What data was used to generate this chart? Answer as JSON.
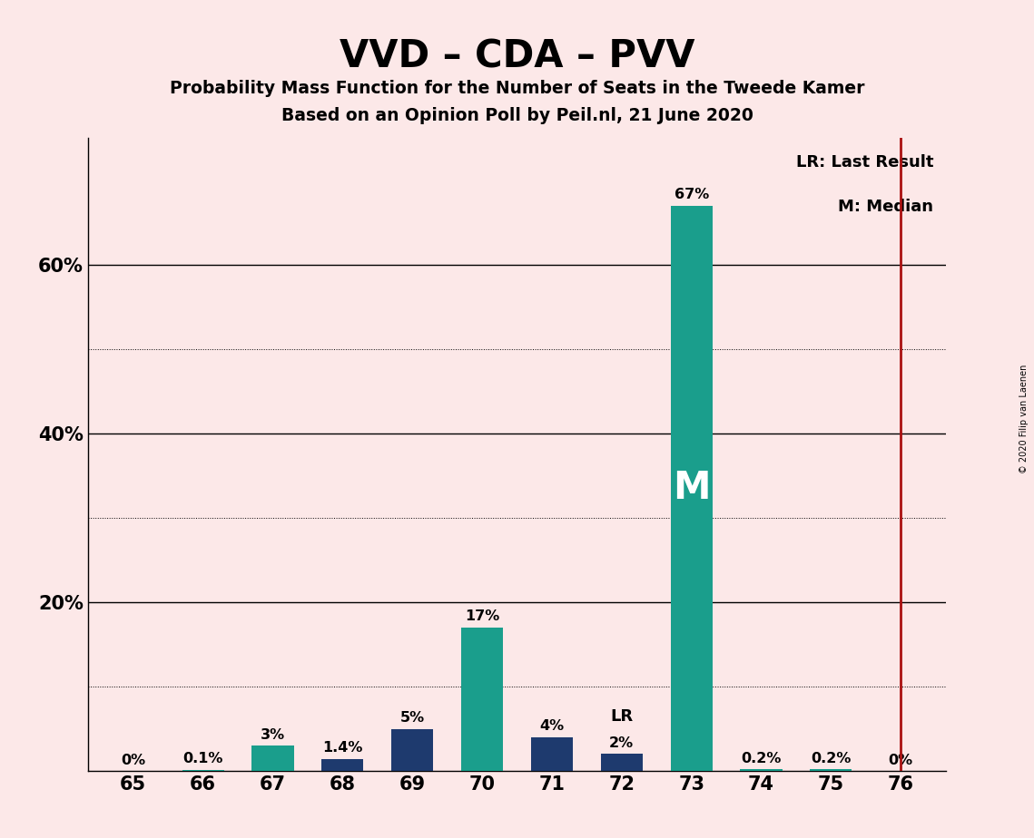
{
  "title": "VVD – CDA – PVV",
  "subtitle1": "Probability Mass Function for the Number of Seats in the Tweede Kamer",
  "subtitle2": "Based on an Opinion Poll by Peil.nl, 21 June 2020",
  "copyright": "© 2020 Filip van Laenen",
  "background_color": "#fce8e8",
  "categories": [
    65,
    66,
    67,
    68,
    69,
    70,
    71,
    72,
    73,
    74,
    75,
    76
  ],
  "values": [
    0.0,
    0.1,
    3.0,
    1.4,
    5.0,
    17.0,
    4.0,
    2.0,
    67.0,
    0.2,
    0.2,
    0.0
  ],
  "labels": [
    "0%",
    "0.1%",
    "3%",
    "1.4%",
    "5%",
    "17%",
    "4%",
    "2%",
    "67%",
    "0.2%",
    "0.2%",
    "0%"
  ],
  "bar_colors": [
    "#1a9e8c",
    "#1a9e8c",
    "#1a9e8c",
    "#1e3a6e",
    "#1e3a6e",
    "#1a9e8c",
    "#1e3a6e",
    "#1e3a6e",
    "#1a9e8c",
    "#1a9e8c",
    "#1a9e8c",
    "#1a9e8c"
  ],
  "ymajor_gridlines": [
    20,
    40,
    60
  ],
  "yminor_gridlines": [
    10,
    30,
    50
  ],
  "ylim": [
    0,
    75
  ],
  "red_line_color": "#aa1111",
  "legend_text1": "LR: Last Result",
  "legend_text2": "M: Median"
}
